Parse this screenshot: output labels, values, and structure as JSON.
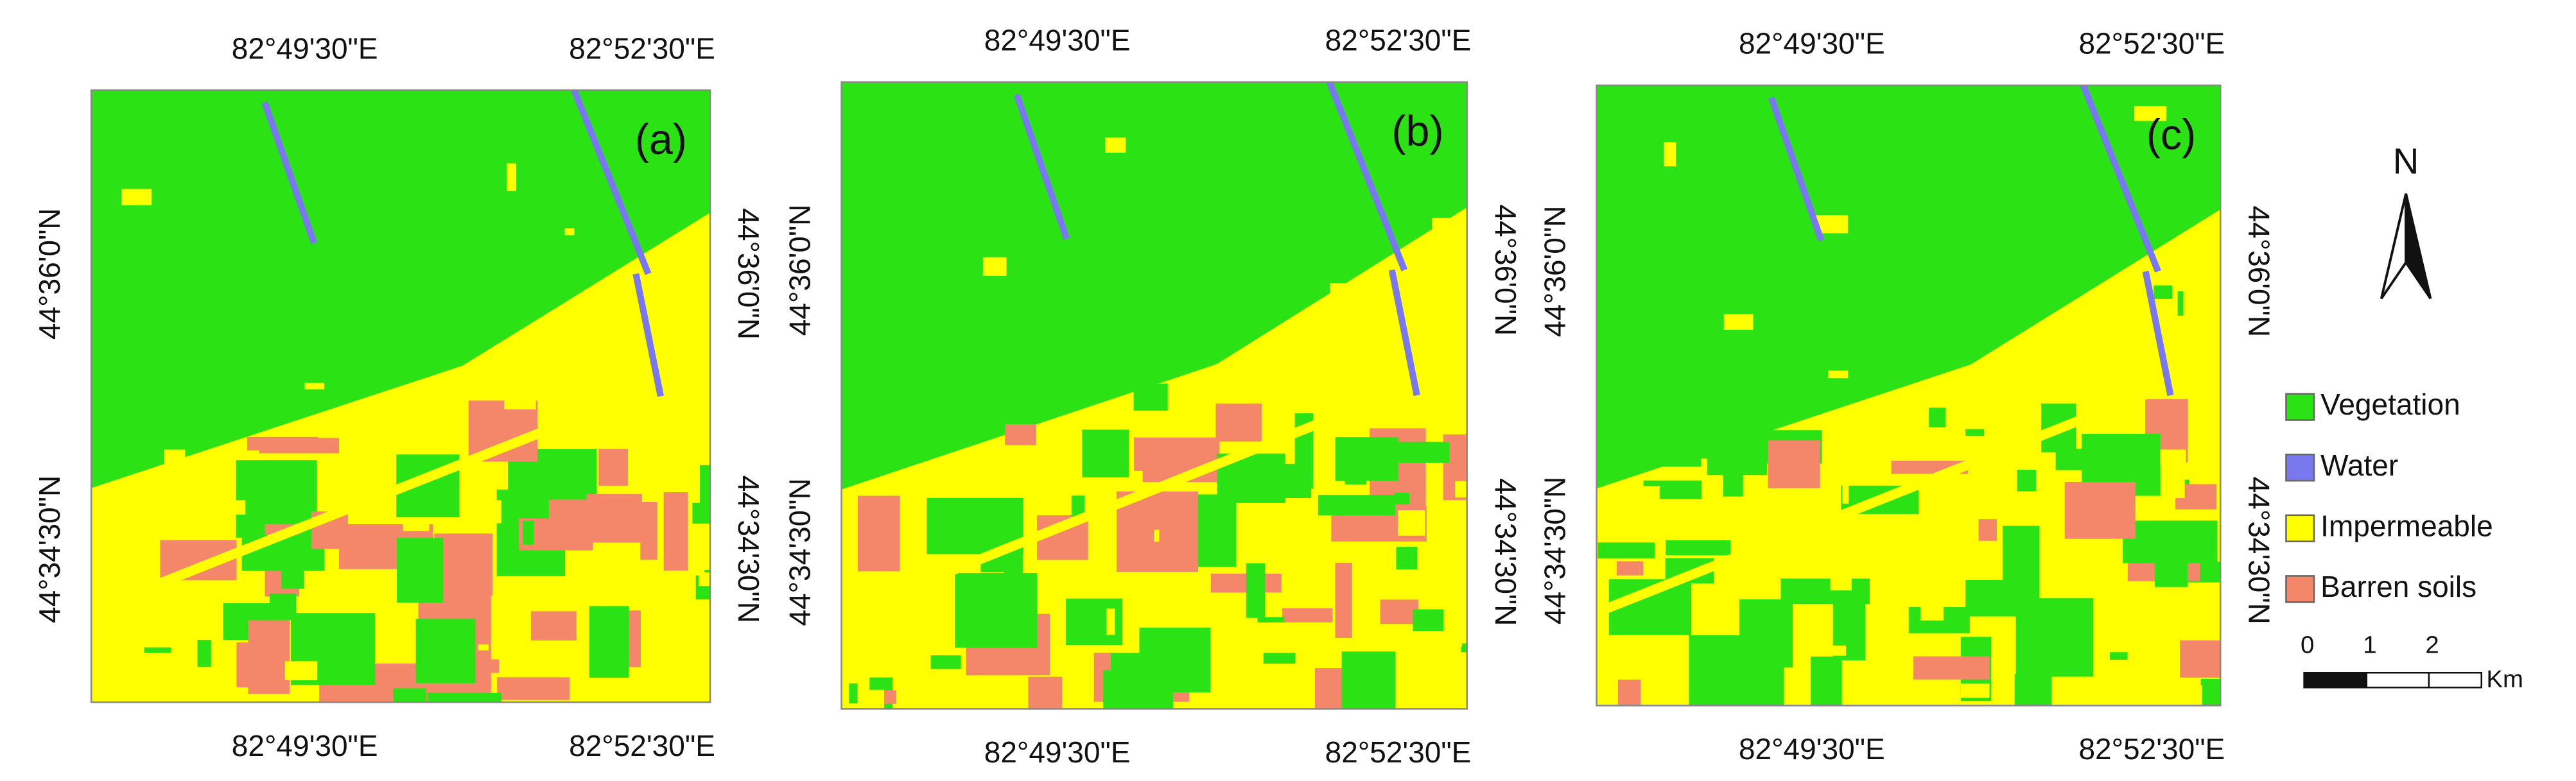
{
  "panels": [
    {
      "label": "(a)",
      "top_labels": [
        "82°49'30\"E",
        "82°52'30\"E"
      ],
      "bottom_labels": [
        "82°49'30\"E",
        "82°52'30\"E"
      ],
      "left_labels": [
        "44°36'0\"N",
        "44°34'30\"N"
      ],
      "right_labels": [
        "44°36'0\"N",
        "44°34'30\"N"
      ]
    },
    {
      "label": "(b)",
      "top_labels": [
        "82°49'30\"E",
        "82°52'30\"E"
      ],
      "bottom_labels": [
        "82°49'30\"E",
        "82°52'30\"E"
      ],
      "left_labels": [
        "44°36'0\"N",
        "44°34'30\"N"
      ],
      "right_labels": [
        "44°36'0\"N",
        "44°34'30\"N"
      ]
    },
    {
      "label": "(c)",
      "top_labels": [
        "82°49'30\"E",
        "82°52'30\"E"
      ],
      "bottom_labels": [
        "82°49'30\"E",
        "82°52'30\"E"
      ],
      "left_labels": [
        "44°36'0\"N",
        "44°34'30\"N"
      ],
      "right_labels": [
        "44°36'0\"N",
        "44°34'30\"N"
      ]
    }
  ],
  "north_arrow": {
    "label": "N"
  },
  "legend": {
    "items": [
      {
        "name": "Vegetation",
        "color": "#2be314"
      },
      {
        "name": "Water",
        "color": "#7a78ee"
      },
      {
        "name": "Impermeable",
        "color": "#ffff00"
      },
      {
        "name": "Barren soils",
        "color": "#f4866a"
      }
    ]
  },
  "scale_bar": {
    "labels": [
      "0",
      "1",
      "2"
    ],
    "unit": "Km"
  }
}
